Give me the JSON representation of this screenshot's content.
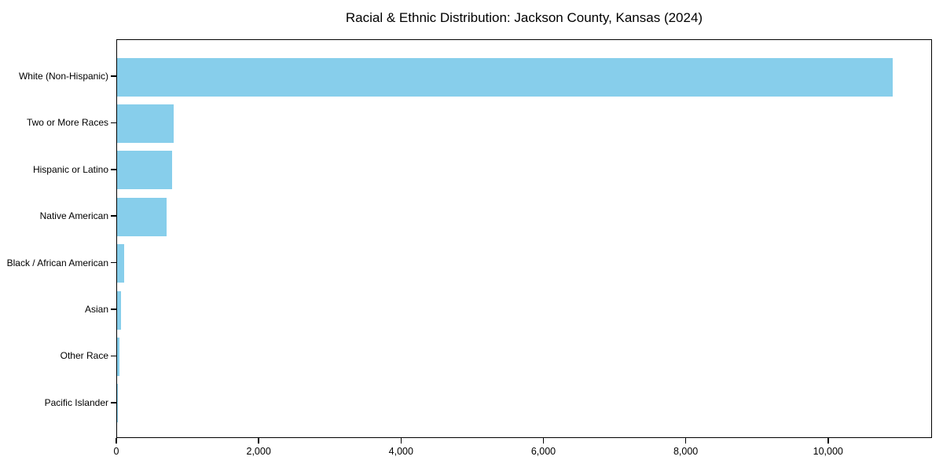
{
  "chart_data": {
    "type": "bar",
    "orientation": "horizontal",
    "title": "Racial & Ethnic Distribution: Jackson County, Kansas (2024)",
    "xlabel": "",
    "ylabel": "",
    "categories": [
      "White (Non-Hispanic)",
      "Two or More Races",
      "Hispanic or Latino",
      "Native American",
      "Black / African American",
      "Asian",
      "Other Race",
      "Pacific Islander"
    ],
    "values": [
      10900,
      790,
      770,
      700,
      95,
      60,
      35,
      5
    ],
    "xlim": [
      0,
      11460
    ],
    "xticks": [
      0,
      2000,
      4000,
      6000,
      8000,
      10000
    ],
    "xtick_labels": [
      "0",
      "2,000",
      "4,000",
      "6,000",
      "8,000",
      "10,000"
    ],
    "bar_color": "#87CEEB",
    "axis_color": "#000000",
    "background_color": "#ffffff",
    "grid": false,
    "legend": null
  }
}
